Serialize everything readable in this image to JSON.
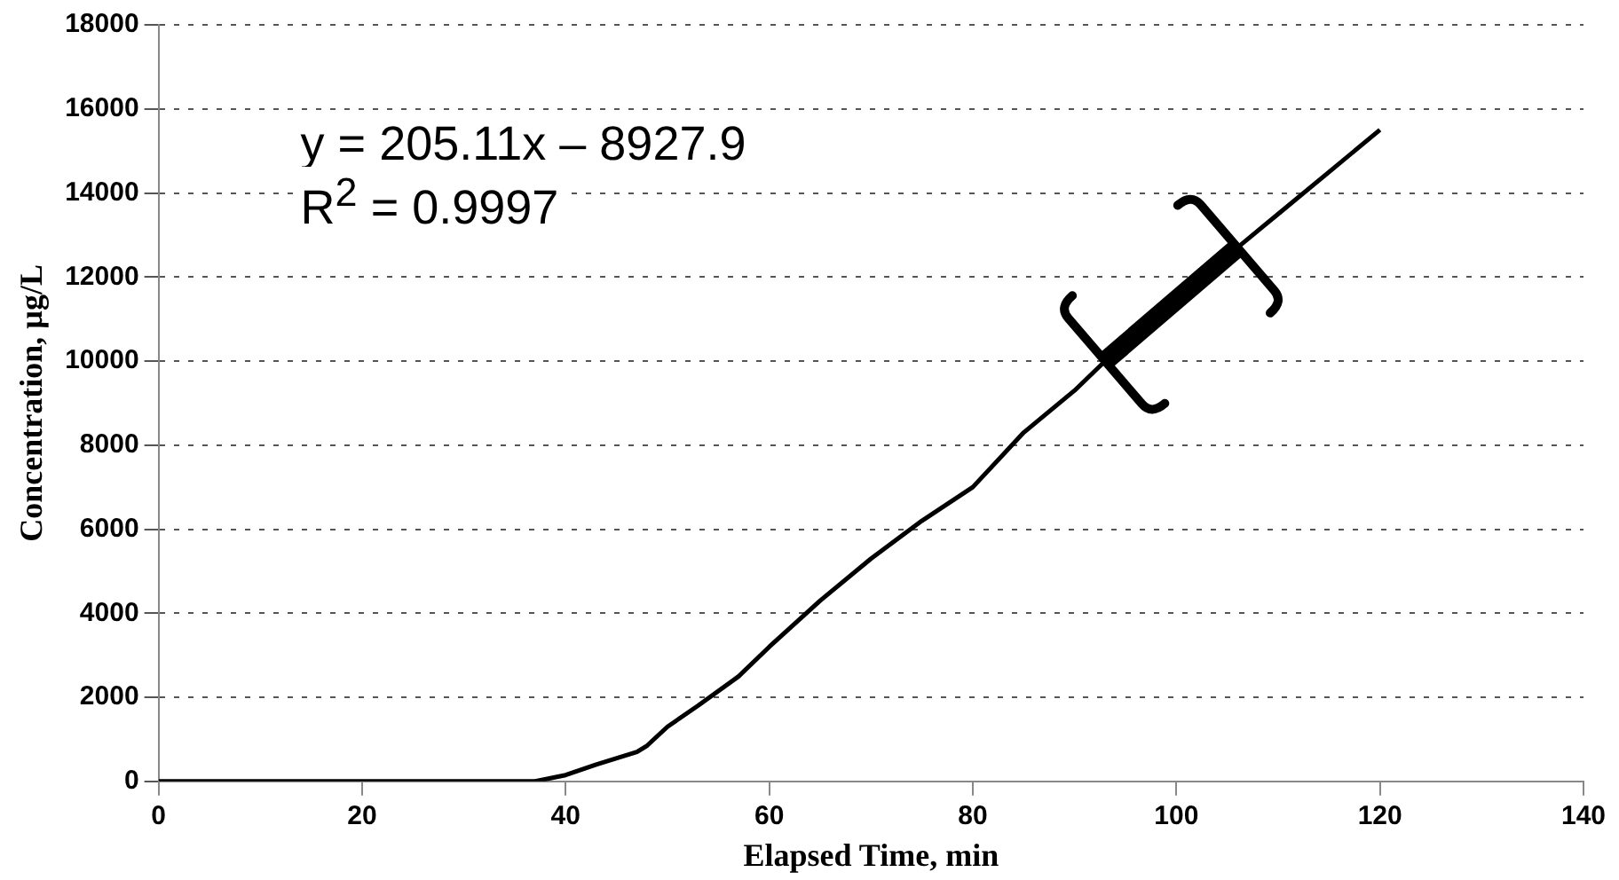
{
  "chart_data": {
    "type": "line",
    "xlabel": "Elapsed Time, min",
    "ylabel": "Concentration, µg/L",
    "xlim": [
      0,
      140
    ],
    "xticks": [
      0,
      20,
      40,
      60,
      80,
      100,
      120,
      140
    ],
    "ylim": [
      0,
      18000
    ],
    "yticks": [
      0,
      2000,
      4000,
      6000,
      8000,
      10000,
      12000,
      14000,
      16000,
      18000
    ],
    "grid": "y",
    "legend": false,
    "marker": "none",
    "line_style": "solid",
    "annotations": [
      "y = 205.11x – 8927.9",
      "R$^{2}$ = 0.9997"
    ],
    "series": [
      {
        "color": "#000000",
        "x": [
          0,
          10,
          20,
          30,
          37,
          40,
          43,
          47,
          48,
          50,
          53,
          57,
          60,
          65,
          70,
          75,
          80,
          85,
          90,
          93,
          100,
          106,
          110,
          115,
          120
        ],
        "values": [
          0,
          0,
          0,
          0,
          0,
          150,
          400,
          700,
          850,
          1300,
          1800,
          2500,
          3200,
          4300,
          5300,
          6200,
          7000,
          8300,
          9300,
          10000,
          11400,
          12700,
          13500,
          14500,
          15500
        ]
      },
      {
        "color": "#000000",
        "x": [
          93,
          106
        ],
        "values": [
          10000,
          12700
        ]
      }
    ]
  }
}
